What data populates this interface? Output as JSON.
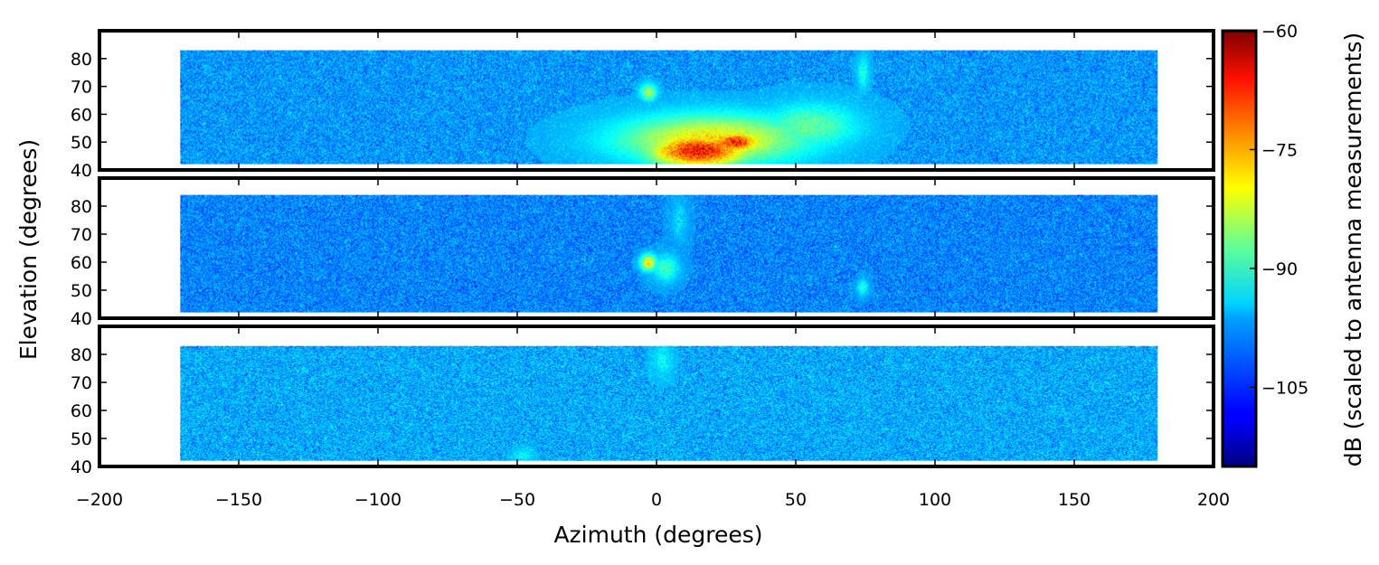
{
  "chart_data": {
    "type": "heatmap",
    "panels": [
      {
        "name": "panel-1",
        "xlim": [
          -200,
          200
        ],
        "ylim": [
          40,
          90
        ],
        "data_extent": {
          "az": [
            -171,
            180
          ],
          "el": [
            42,
            83
          ]
        },
        "background_db": -100,
        "features": [
          {
            "az": 15,
            "el": 47,
            "peak_db": -64,
            "spread_az": 18,
            "spread_el": 6
          },
          {
            "az": 28,
            "el": 50,
            "peak_db": -66,
            "spread_az": 10,
            "spread_el": 4
          },
          {
            "az": 20,
            "el": 51,
            "peak_db": -78,
            "spread_az": 34,
            "spread_el": 9
          },
          {
            "az": 55,
            "el": 56,
            "peak_db": -88,
            "spread_az": 18,
            "spread_el": 8
          },
          {
            "az": -3,
            "el": 68,
            "peak_db": -84,
            "spread_az": 3,
            "spread_el": 3
          },
          {
            "az": 74,
            "el": 75,
            "peak_db": -92,
            "spread_az": 2,
            "spread_el": 6
          }
        ]
      },
      {
        "name": "panel-2",
        "xlim": [
          -200,
          200
        ],
        "ylim": [
          40,
          90
        ],
        "data_extent": {
          "az": [
            -171,
            180
          ],
          "el": [
            42,
            84
          ]
        },
        "background_db": -101,
        "features": [
          {
            "az": -3,
            "el": 60,
            "peak_db": -78,
            "spread_az": 3,
            "spread_el": 3
          },
          {
            "az": 3,
            "el": 58,
            "peak_db": -90,
            "spread_az": 5,
            "spread_el": 5
          },
          {
            "az": 8,
            "el": 75,
            "peak_db": -96,
            "spread_az": 3,
            "spread_el": 8
          },
          {
            "az": 74,
            "el": 51,
            "peak_db": -92,
            "spread_az": 2,
            "spread_el": 3
          }
        ]
      },
      {
        "name": "panel-3",
        "xlim": [
          -200,
          200
        ],
        "ylim": [
          40,
          90
        ],
        "data_extent": {
          "az": [
            -171,
            180
          ],
          "el": [
            42,
            83
          ]
        },
        "background_db": -99,
        "features": [
          {
            "az": 2,
            "el": 78,
            "peak_db": -94,
            "spread_az": 3,
            "spread_el": 5
          },
          {
            "az": -48,
            "el": 44,
            "peak_db": -94,
            "spread_az": 3,
            "spread_el": 2
          }
        ]
      }
    ],
    "x_ticks": [
      -200,
      -150,
      -100,
      -50,
      0,
      50,
      100,
      150,
      200
    ],
    "y_ticks": [
      40,
      50,
      60,
      70,
      80
    ],
    "xlabel": "Azimuth (degrees)",
    "ylabel": "Elevation (degrees)",
    "colorbar": {
      "label": "dB (scaled to antenna measurements)",
      "range": [
        -115,
        -60
      ],
      "ticks": [
        -60,
        -75,
        -90,
        -105
      ],
      "colormap": "jet"
    },
    "grid": false,
    "legend": "none"
  },
  "colors": {
    "frame": "#000000",
    "background": "#ffffff"
  },
  "labels": {
    "x_tick_labels": [
      "−200",
      "−150",
      "−100",
      "−50",
      "0",
      "50",
      "100",
      "150",
      "200"
    ],
    "y_tick_labels": [
      "40",
      "50",
      "60",
      "70",
      "80"
    ],
    "colorbar_tick_labels": [
      "−60",
      "−75",
      "−90",
      "−105"
    ]
  }
}
